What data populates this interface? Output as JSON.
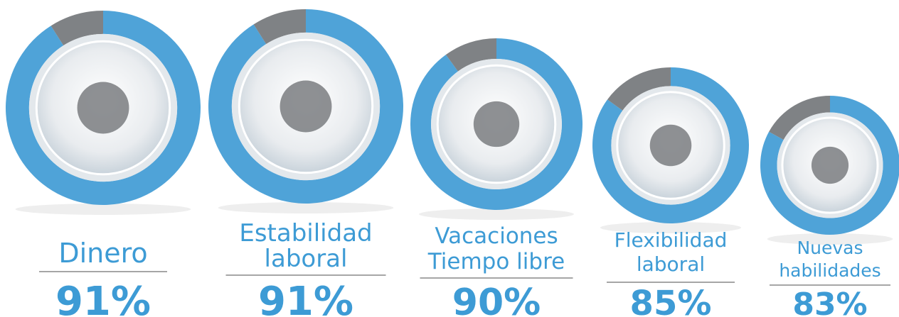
{
  "chart_data": {
    "type": "donut",
    "categories": [
      [
        "Dinero"
      ],
      [
        "Estabilidad",
        "laboral"
      ],
      [
        "Vacaciones",
        "Tiempo libre"
      ],
      [
        "Flexibilidad",
        "laboral"
      ],
      [
        "Nuevas",
        "habilidades"
      ]
    ],
    "values": [
      91,
      91,
      90,
      85,
      83
    ],
    "value_labels": [
      "91%",
      "91%",
      "90%",
      "85%",
      "83%"
    ],
    "color": "#4fa3d8",
    "rest_color": "#7f8285",
    "text_color": "#3d9bd5"
  }
}
